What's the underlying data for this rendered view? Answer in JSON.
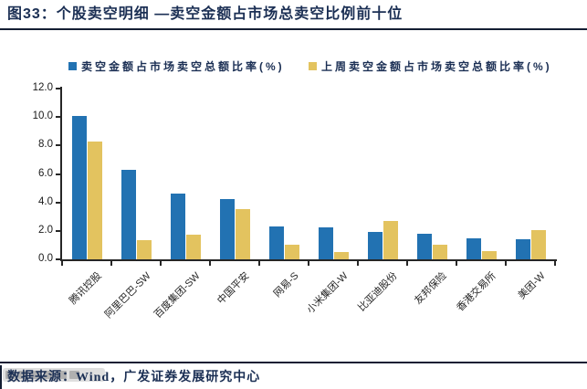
{
  "title": "图33：个股卖空明细 —卖空金额占市场总卖空比例前十位",
  "footer": {
    "source_label": "数据来源：Wind，广发证券发展研究中心"
  },
  "colors": {
    "heading_navy": "#1b2f54",
    "rule": "#141e33",
    "axis": "#262626",
    "series_blue": "#2272b2",
    "series_gold": "#e3c35f"
  },
  "chart_data": {
    "type": "bar",
    "title": "个股卖空明细 —卖空金额占市场总卖空比例前十位",
    "categories": [
      "腾讯控股",
      "阿里巴巴-SW",
      "百度集团-SW",
      "中国平安",
      "网易-S",
      "小米集团-W",
      "比亚迪股份",
      "友邦保险",
      "香港交易所",
      "美团-W"
    ],
    "series": [
      {
        "name": "卖空金额占市场卖空总额比率(%)",
        "color": "#2272b2",
        "values": [
          10.1,
          6.3,
          4.6,
          4.25,
          2.3,
          2.25,
          1.9,
          1.8,
          1.5,
          1.4
        ]
      },
      {
        "name": "上周卖空金额占市场卖空总额比率(%)",
        "color": "#e3c35f",
        "values": [
          8.3,
          1.35,
          1.75,
          3.55,
          1.0,
          0.5,
          2.7,
          1.05,
          0.55,
          2.05
        ]
      }
    ],
    "xlabel": "",
    "ylabel": "",
    "ylim": [
      0,
      12
    ],
    "yticks": [
      0,
      2,
      4,
      6,
      8,
      10,
      12
    ],
    "ytick_labels": [
      "0.0",
      "2.0",
      "4.0",
      "6.0",
      "8.0",
      "10.0",
      "12.0"
    ],
    "grid": false,
    "legend_position": "top",
    "bar_label_rotation_deg": 45
  }
}
